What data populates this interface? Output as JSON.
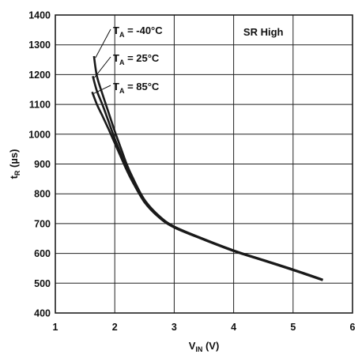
{
  "chart_data": {
    "type": "line",
    "x": {
      "min": 1,
      "max": 6,
      "ticks": [
        1,
        2,
        3,
        4,
        5,
        6
      ],
      "label_main": "V",
      "label_sub": "IN",
      "label_unit": " (V)"
    },
    "y": {
      "min": 400,
      "max": 1400,
      "ticks": [
        400,
        500,
        600,
        700,
        800,
        900,
        1000,
        1100,
        1200,
        1300,
        1400
      ],
      "label_main": "t",
      "label_sub": "R",
      "label_unit": " (µs)"
    },
    "grid": true,
    "annotation": "SR High",
    "series": [
      {
        "name": "T_A = -40°C",
        "label_main": "T",
        "label_sub": "A",
        "label_rest": " = -40°C",
        "x": [
          1.65,
          1.7,
          1.8,
          1.9,
          2.0,
          2.1,
          2.2,
          2.3,
          2.5,
          2.75,
          3.0,
          3.5,
          4.0,
          4.5,
          5.0,
          5.5
        ],
        "y": [
          1262,
          1195,
          1130,
          1070,
          1010,
          955,
          900,
          855,
          780,
          725,
          690,
          648,
          610,
          578,
          546,
          512
        ]
      },
      {
        "name": "T_A = 25°C",
        "label_main": "T",
        "label_sub": "A",
        "label_rest": " = 25°C",
        "x": [
          1.63,
          1.7,
          1.8,
          1.9,
          2.0,
          2.1,
          2.2,
          2.3,
          2.5,
          2.75,
          3.0,
          3.5,
          4.0,
          4.5,
          5.0,
          5.5
        ],
        "y": [
          1195,
          1145,
          1095,
          1040,
          985,
          935,
          885,
          845,
          775,
          722,
          688,
          647,
          609,
          577,
          545,
          511
        ]
      },
      {
        "name": "T_A = 85°C",
        "label_main": "T",
        "label_sub": "A",
        "label_rest": " = 85°C",
        "x": [
          1.62,
          1.7,
          1.8,
          1.9,
          2.0,
          2.1,
          2.2,
          2.3,
          2.5,
          2.75,
          3.0,
          3.5,
          4.0,
          4.5,
          5.0,
          5.5
        ],
        "y": [
          1142,
          1100,
          1058,
          1015,
          970,
          925,
          880,
          840,
          772,
          720,
          687,
          646,
          608,
          576,
          544,
          510
        ]
      }
    ]
  }
}
